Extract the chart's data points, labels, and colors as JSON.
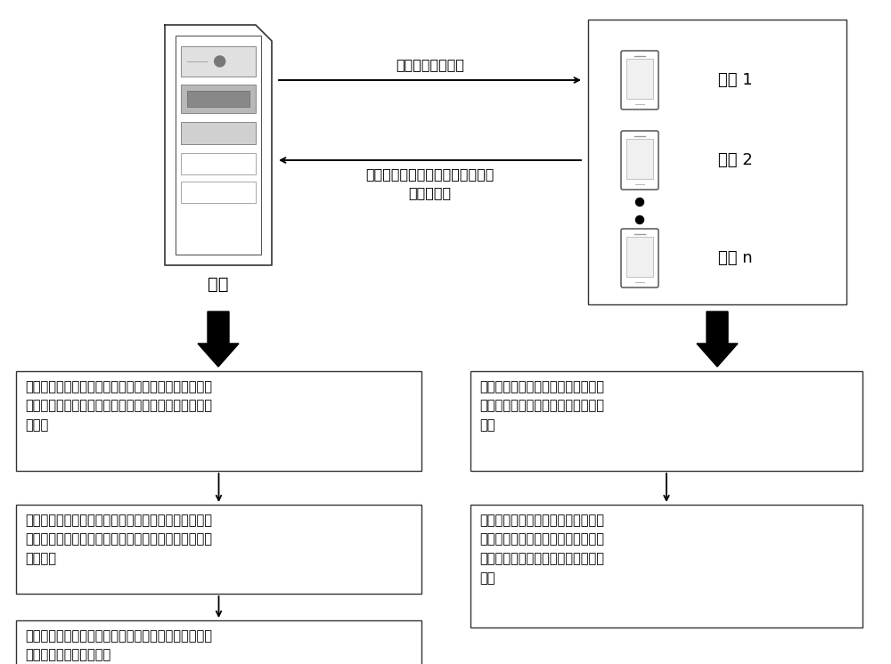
{
  "bg_color": "#ffffff",
  "server_label": "云端",
  "arrow_right_label": "初始神经网络模型",
  "arrow_left_label": "针对初始神经网络模型的多个候选\n模型更新值",
  "terminals": [
    "终端 1",
    "终端 2",
    "终端 n"
  ],
  "left_boxes": [
    "根据差值的数据属性对多个候选模型更新值进行质量评\n估，获得多个候选模型更新值中的每个候选模型更新值\n的权重",
    "对多个候选模型更新值中的每个候选模型更新值采用加\n权中位数机制，确定对初始神经网络模型进行更新的模\n型更新值",
    "基于对初始神经网络模型进行更新的模型更新值，对初\n始神经网络模型进行更新"
  ],
  "right_boxes": [
    "基于多个数据集对初始神经网络模型\n训练，获得多个经过训练的神经网络\n模型",
    "将多个经过训练的神经网络模型分别\n与初始神经网络模型做差，获得针对\n初始神经网络模型的多个候选模型更\n新值"
  ]
}
